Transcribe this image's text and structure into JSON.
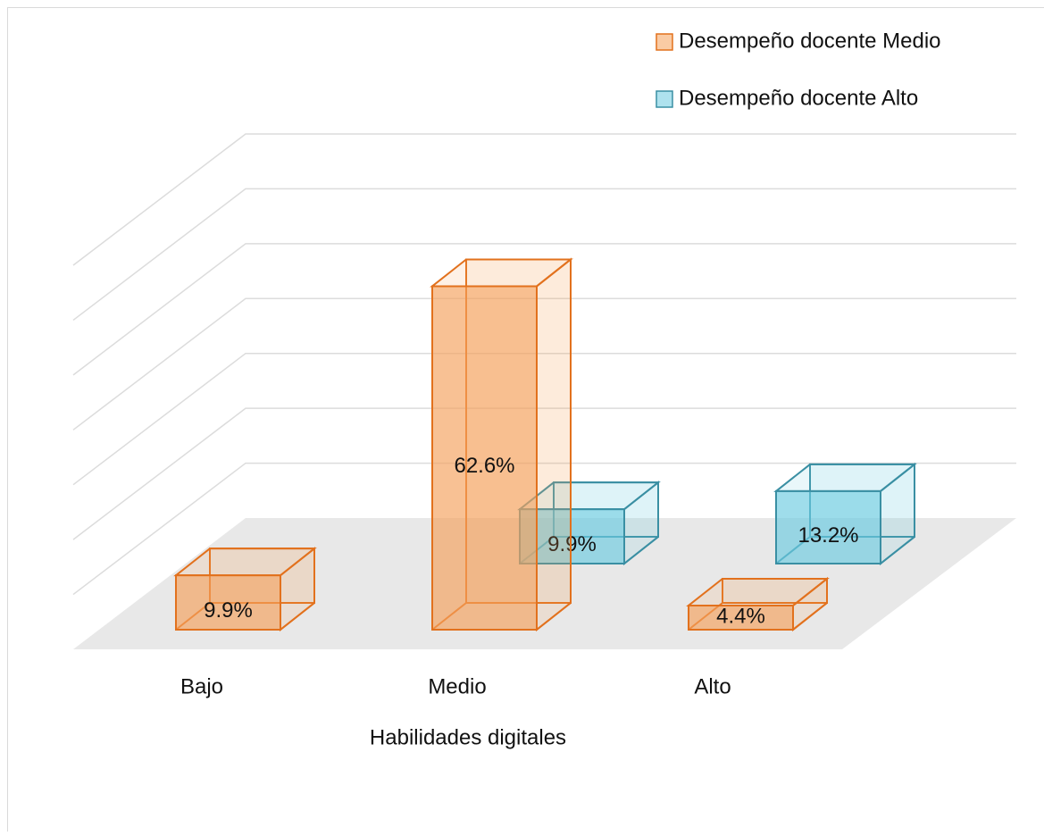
{
  "chart_data": {
    "type": "bar3d",
    "x_label": "Habilidades digitales",
    "categories": [
      "Bajo",
      "Medio",
      "Alto"
    ],
    "series": [
      {
        "name": "Desempeño docente Medio",
        "color": "#f5a05a",
        "edge": "#e2711d",
        "values": [
          9.9,
          62.6,
          4.4
        ],
        "value_labels": [
          "9.9%",
          "62.6%",
          "4.4%"
        ]
      },
      {
        "name": "Desempeño docente Alto",
        "color": "#6ccbe0",
        "edge": "#3a8fa3",
        "values": [
          null,
          9.9,
          13.2
        ],
        "value_labels": [
          null,
          "9.9%",
          "13.2%"
        ]
      }
    ],
    "ylim": [
      0,
      70
    ],
    "yticks": [
      0,
      10,
      20,
      30,
      40,
      50,
      60,
      70
    ],
    "grid": true,
    "legend": "top-right"
  }
}
